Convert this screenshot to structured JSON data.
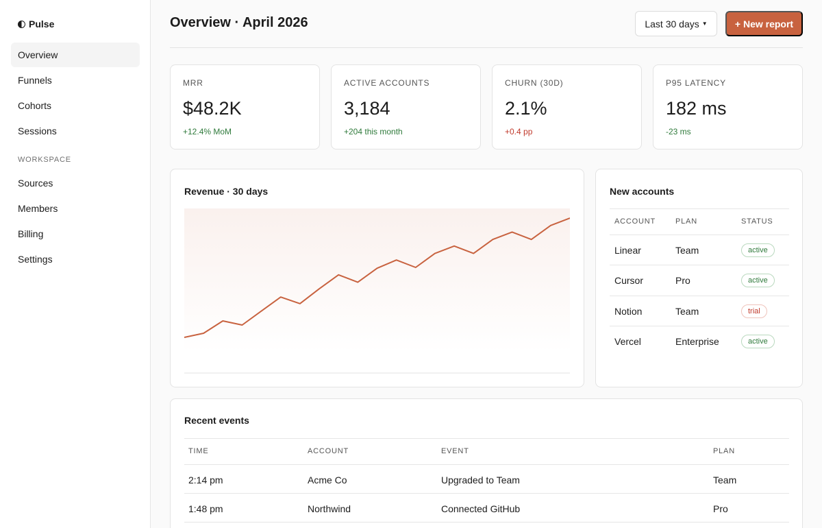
{
  "brand": {
    "name": "Pulse",
    "icon": "half-circle-icon"
  },
  "sidebar": {
    "items": [
      {
        "label": "Overview",
        "active": true
      },
      {
        "label": "Funnels"
      },
      {
        "label": "Cohorts"
      },
      {
        "label": "Sessions"
      }
    ],
    "section_label": "WORKSPACE",
    "workspace_items": [
      {
        "label": "Sources"
      },
      {
        "label": "Members"
      },
      {
        "label": "Billing"
      },
      {
        "label": "Settings"
      }
    ]
  },
  "header": {
    "title": "Overview · April 2026",
    "range_label": "Last 30 days",
    "new_report_label": "+ New report"
  },
  "kpis": [
    {
      "label": "MRR",
      "value": "$48.2K",
      "delta": "+12.4% MoM",
      "trend": "up"
    },
    {
      "label": "Active accounts",
      "value": "3,184",
      "delta": "+204 this month",
      "trend": "up"
    },
    {
      "label": "Churn (30d)",
      "value": "2.1%",
      "delta": "+0.4 pp",
      "trend": "down"
    },
    {
      "label": "P95 latency",
      "value": "182 ms",
      "delta": "-23 ms",
      "trend": "up"
    }
  ],
  "revenue": {
    "title": "Revenue · 30 days"
  },
  "chart_data": {
    "type": "area",
    "title": "Revenue · 30 days",
    "x": [
      1,
      2,
      3,
      4,
      5,
      6,
      7,
      8,
      9,
      10,
      11,
      12,
      13,
      14,
      15,
      16,
      17,
      18,
      19,
      20,
      21
    ],
    "values": [
      10,
      15,
      30,
      25,
      42,
      59,
      51,
      69,
      86,
      77,
      94,
      104,
      95,
      112,
      121,
      112,
      129,
      138,
      129,
      146,
      155
    ],
    "ylim": [
      0,
      160
    ],
    "grid": false,
    "accent": "#c8623f"
  },
  "new_accounts": {
    "title": "New accounts",
    "columns": [
      "ACCOUNT",
      "PLAN",
      "STATUS"
    ],
    "rows": [
      {
        "account": "Linear",
        "plan": "Team",
        "status": "active"
      },
      {
        "account": "Cursor",
        "plan": "Pro",
        "status": "active"
      },
      {
        "account": "Notion",
        "plan": "Team",
        "status": "trial"
      },
      {
        "account": "Vercel",
        "plan": "Enterprise",
        "status": "active"
      }
    ]
  },
  "events": {
    "title": "Recent events",
    "columns": [
      "TIME",
      "ACCOUNT",
      "EVENT",
      "PLAN"
    ],
    "rows": [
      {
        "time": "2:14 pm",
        "account": "Acme Co",
        "event": "Upgraded to Team",
        "plan": "Team"
      },
      {
        "time": "1:48 pm",
        "account": "Northwind",
        "event": "Connected GitHub",
        "plan": "Pro"
      }
    ]
  },
  "colors": {
    "accent": "#c8623f",
    "positive": "#2f7a3b",
    "negative": "#c0392b"
  }
}
